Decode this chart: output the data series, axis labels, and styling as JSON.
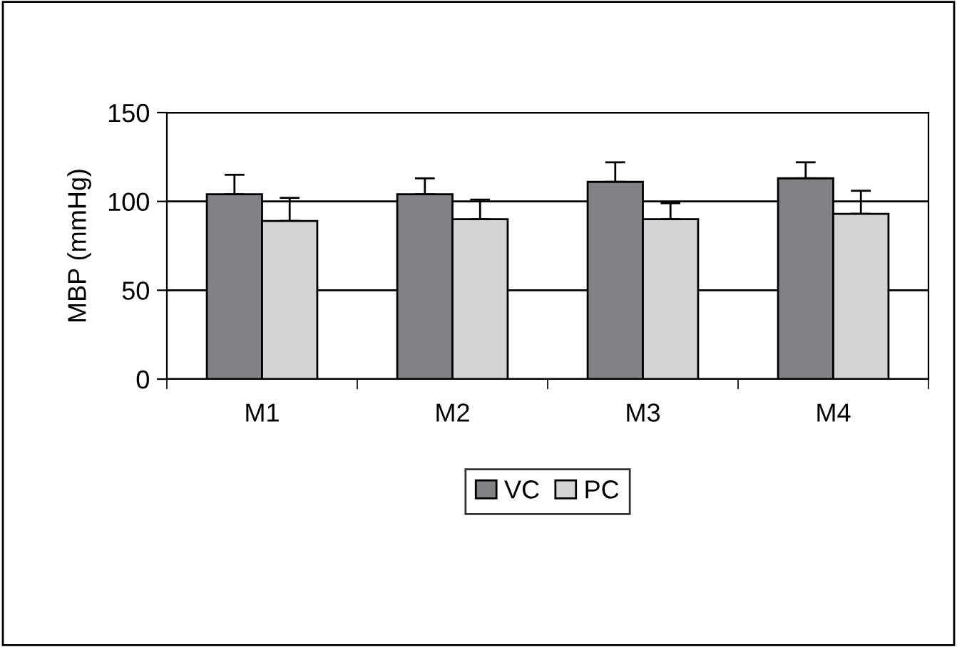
{
  "chart_data": {
    "type": "bar",
    "ylabel": "MBP (mmHg)",
    "categories": [
      "M1",
      "M2",
      "M3",
      "M4"
    ],
    "series": [
      {
        "name": "VC",
        "color": "#808285",
        "values": [
          104,
          104,
          111,
          113
        ],
        "errors": [
          [
            104,
            115
          ],
          [
            104,
            113
          ],
          [
            111,
            122
          ],
          [
            113,
            122
          ]
        ]
      },
      {
        "name": "PC",
        "color": "#d3d4d6",
        "values": [
          89,
          90,
          90,
          93
        ],
        "errors": [
          [
            89,
            102
          ],
          [
            90,
            101
          ],
          [
            90,
            99
          ],
          [
            93,
            106
          ]
        ]
      }
    ],
    "ylim": [
      0,
      150
    ],
    "yticks": [
      0,
      50,
      100,
      150
    ],
    "grid": "y",
    "legend": "bottom"
  }
}
